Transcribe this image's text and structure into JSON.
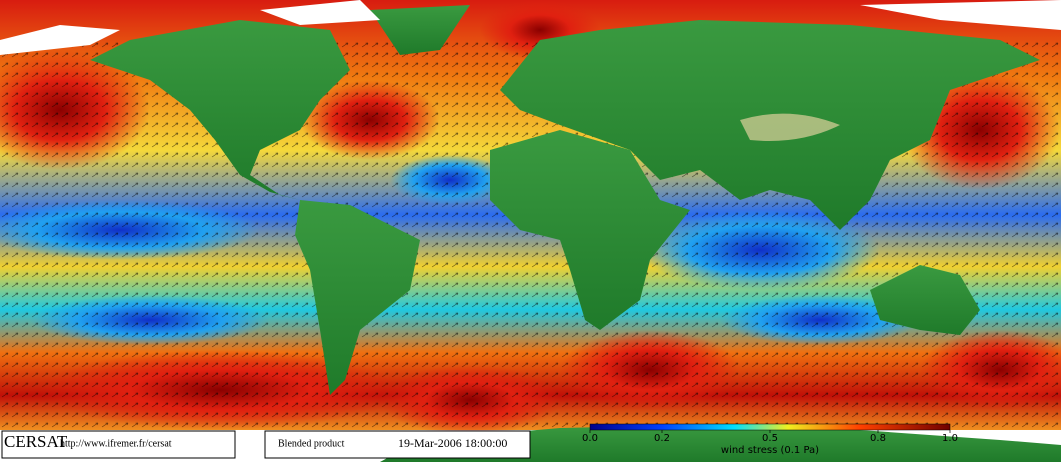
{
  "footer": {
    "logo": "CERSAT",
    "url": "http://www.ifremer.fr/cersat",
    "product": "Blended product",
    "date": "19-Mar-2006 18:00:00"
  },
  "colorbar": {
    "lim": [
      0,
      1
    ],
    "ticks": [
      {
        "value": 0,
        "label": "0.0"
      },
      0.2,
      0.5,
      0.8,
      {
        "value": 1,
        "label": "1.0"
      }
    ],
    "label": "wind stress (0.1 Pa)"
  }
}
